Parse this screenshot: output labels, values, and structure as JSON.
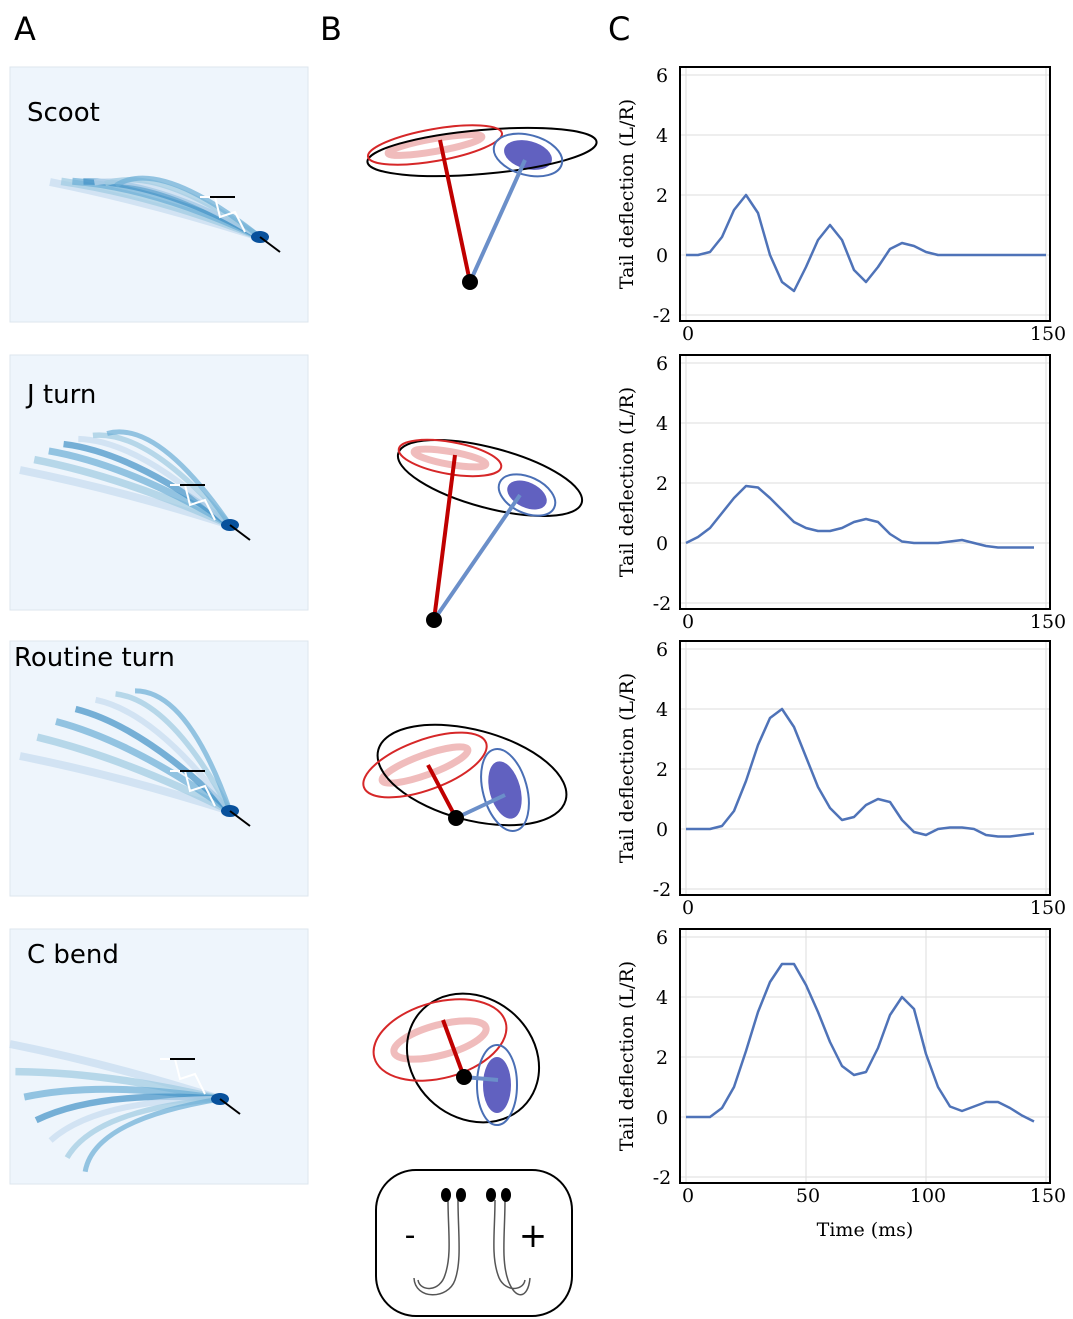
{
  "panel_labels": [
    "A",
    "B",
    "C"
  ],
  "behaviors": [
    "Scoot",
    "J turn",
    "Routine turn",
    "C bend"
  ],
  "legend_signs": [
    "-",
    "+"
  ],
  "chart_data": [
    {
      "type": "line",
      "ylabel": "Tail deflection (L/R)",
      "xlim": [
        0,
        150
      ],
      "xticks": [
        0,
        150
      ],
      "ylim": [
        -2,
        6
      ],
      "yticks": [
        -2,
        0,
        2,
        4,
        6
      ],
      "grid": true,
      "color": "#4f73b8",
      "x": [
        0,
        5,
        10,
        15,
        20,
        25,
        30,
        35,
        40,
        45,
        50,
        55,
        60,
        65,
        70,
        75,
        80,
        85,
        90,
        95,
        100,
        105,
        110,
        115,
        120,
        125,
        130,
        135,
        140,
        145,
        150
      ],
      "values": [
        0,
        0,
        0.1,
        0.6,
        1.5,
        2.0,
        1.4,
        0,
        -0.9,
        -1.2,
        -0.4,
        0.5,
        1.0,
        0.5,
        -0.5,
        -0.9,
        -0.4,
        0.2,
        0.4,
        0.3,
        0.1,
        0,
        0,
        0,
        0,
        0,
        0,
        0,
        0,
        0,
        0
      ]
    },
    {
      "type": "line",
      "ylabel": "Tail deflection (L/R)",
      "xlim": [
        0,
        150
      ],
      "xticks": [
        0,
        150
      ],
      "ylim": [
        -2,
        6
      ],
      "yticks": [
        -2,
        0,
        2,
        4,
        6
      ],
      "grid": true,
      "color": "#4f73b8",
      "x": [
        0,
        5,
        10,
        15,
        20,
        25,
        30,
        35,
        40,
        45,
        50,
        55,
        60,
        65,
        70,
        75,
        80,
        85,
        90,
        95,
        100,
        105,
        110,
        115,
        120,
        125,
        130,
        135,
        140,
        145
      ],
      "values": [
        0,
        0.2,
        0.5,
        1,
        1.5,
        1.9,
        1.85,
        1.5,
        1.1,
        0.7,
        0.5,
        0.4,
        0.4,
        0.5,
        0.7,
        0.8,
        0.7,
        0.3,
        0.05,
        0,
        0,
        0,
        0.05,
        0.1,
        0,
        -0.1,
        -0.15,
        -0.15,
        -0.15,
        -0.15
      ]
    },
    {
      "type": "line",
      "ylabel": "Tail deflection (L/R)",
      "xlim": [
        0,
        150
      ],
      "xticks": [
        0,
        150
      ],
      "ylim": [
        -2,
        6
      ],
      "yticks": [
        -2,
        0,
        2,
        4,
        6
      ],
      "grid": true,
      "color": "#4f73b8",
      "x": [
        0,
        5,
        10,
        15,
        20,
        25,
        30,
        35,
        40,
        45,
        50,
        55,
        60,
        65,
        70,
        75,
        80,
        85,
        90,
        95,
        100,
        105,
        110,
        115,
        120,
        125,
        130,
        135,
        140,
        145
      ],
      "values": [
        0,
        0,
        0,
        0.1,
        0.6,
        1.6,
        2.8,
        3.7,
        4.0,
        3.4,
        2.4,
        1.4,
        0.7,
        0.3,
        0.4,
        0.8,
        1,
        0.9,
        0.3,
        -0.1,
        -0.2,
        0,
        0.05,
        0.05,
        0,
        -0.2,
        -0.25,
        -0.25,
        -0.2,
        -0.15
      ]
    },
    {
      "type": "line",
      "ylabel": "Tail deflection (L/R)",
      "xlabel": "Time (ms)",
      "xlim": [
        0,
        150
      ],
      "xticks": [
        0,
        50,
        100,
        150
      ],
      "ylim": [
        -2,
        6
      ],
      "yticks": [
        -2,
        0,
        2,
        4,
        6
      ],
      "grid": true,
      "color": "#4f73b8",
      "x": [
        0,
        5,
        10,
        15,
        20,
        25,
        30,
        35,
        40,
        45,
        50,
        55,
        60,
        65,
        70,
        75,
        80,
        85,
        90,
        95,
        100,
        105,
        110,
        115,
        120,
        125,
        130,
        135,
        140,
        145
      ],
      "values": [
        0,
        0,
        0,
        0.3,
        1,
        2.2,
        3.5,
        4.5,
        5.1,
        5.1,
        4.4,
        3.5,
        2.5,
        1.7,
        1.4,
        1.5,
        2.3,
        3.4,
        4,
        3.6,
        2.1,
        1,
        0.35,
        0.2,
        0.35,
        0.5,
        0.5,
        0.3,
        0.05,
        -0.15
      ]
    }
  ]
}
